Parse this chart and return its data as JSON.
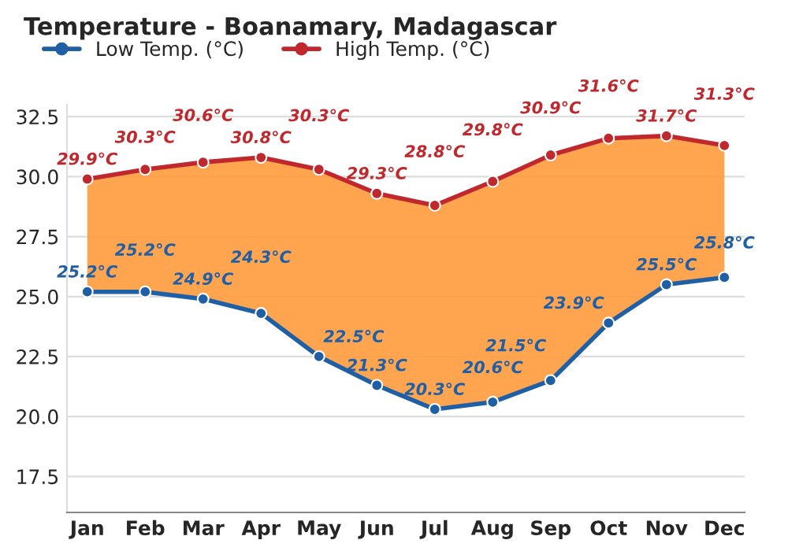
{
  "chart_data": {
    "type": "line",
    "title": "Temperature - Boanamary, Madagascar",
    "categories": [
      "Jan",
      "Feb",
      "Mar",
      "Apr",
      "May",
      "Jun",
      "Jul",
      "Aug",
      "Sep",
      "Oct",
      "Nov",
      "Dec"
    ],
    "series": [
      {
        "name": "Low Temp. (°C)",
        "color": "#1f5fa6",
        "values": [
          25.2,
          25.2,
          24.9,
          24.3,
          22.5,
          21.3,
          20.3,
          20.6,
          21.5,
          23.9,
          25.5,
          25.8
        ],
        "value_labels": [
          "25.2°C",
          "25.2°C",
          "24.9°C",
          "24.3°C",
          "22.5°C",
          "21.3°C",
          "20.3°C",
          "20.6°C",
          "21.5°C",
          "23.9°C",
          "25.5°C",
          "25.8°C"
        ]
      },
      {
        "name": "High Temp. (°C)",
        "color": "#c0282d",
        "values": [
          29.9,
          30.3,
          30.6,
          30.8,
          30.3,
          29.3,
          28.8,
          29.8,
          30.9,
          31.6,
          31.7,
          31.3
        ],
        "value_labels": [
          "29.9°C",
          "30.3°C",
          "30.6°C",
          "30.8°C",
          "30.3°C",
          "29.3°C",
          "28.8°C",
          "29.8°C",
          "30.9°C",
          "31.6°C",
          "31.7°C",
          "31.3°C"
        ],
        "lower": [
          25.2,
          25.2,
          24.9,
          24.3,
          22.5,
          21.3,
          20.3,
          20.6,
          21.5,
          23.9,
          25.5,
          25.8
        ],
        "upper": [
          29.9,
          30.3,
          30.6,
          30.8,
          30.3,
          29.3,
          28.8,
          29.8,
          30.9,
          31.6,
          31.7,
          31.3
        ]
      }
    ],
    "ylim": [
      16,
      33
    ],
    "yticks": [
      17.5,
      {
        "value": 20,
        "label": "20.0"
      },
      22.5,
      {
        "value": 25,
        "label": "25.0"
      },
      27.5,
      {
        "value": 30,
        "label": "30.0"
      },
      32.5
    ],
    "grid": "y",
    "legend": "top left",
    "marker": "circle",
    "line_style": "solid"
  }
}
